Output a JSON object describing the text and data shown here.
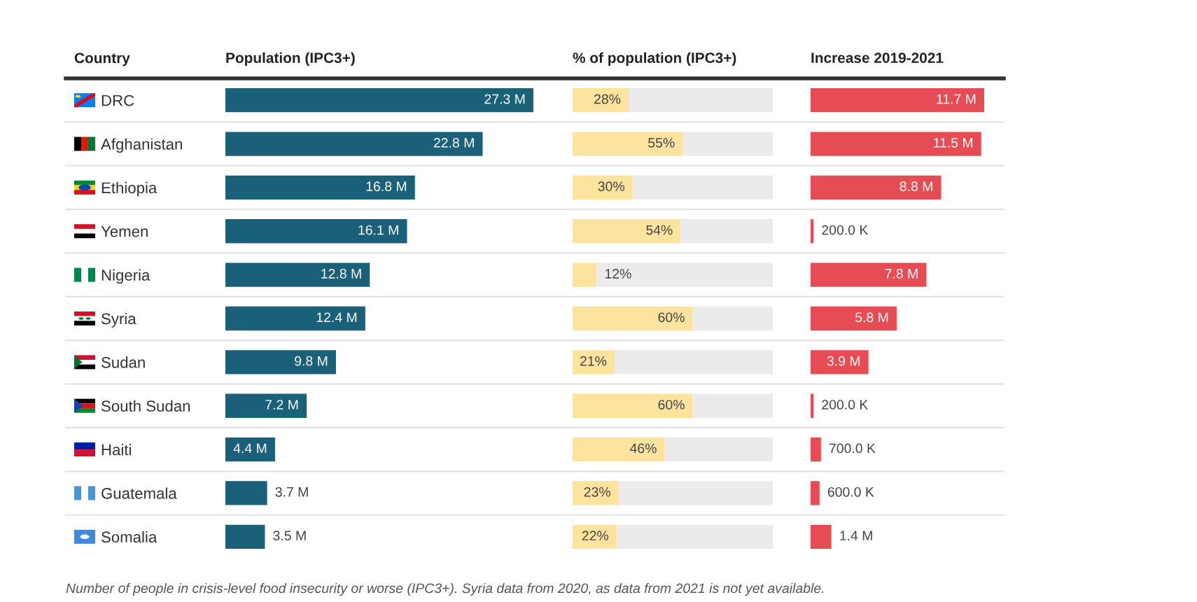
{
  "chart_data": [
    {
      "type": "bar",
      "orientation": "horizontal",
      "title": "Population (IPC3+)",
      "ylabel": "Country",
      "categories": [
        "DRC",
        "Afghanistan",
        "Ethiopia",
        "Yemen",
        "Nigeria",
        "Syria",
        "Sudan",
        "South Sudan",
        "Haiti",
        "Guatemala",
        "Somalia"
      ],
      "values": [
        27.3,
        22.8,
        16.8,
        16.1,
        12.8,
        12.4,
        9.8,
        7.2,
        4.4,
        3.7,
        3.5
      ],
      "value_labels": [
        "27.3 M",
        "22.8 M",
        "16.8 M",
        "16.1 M",
        "12.8 M",
        "12.4 M",
        "9.8 M",
        "7.2 M",
        "4.4 M",
        "3.7 M",
        "3.5 M"
      ],
      "color": "#1b6079",
      "tick_labels": "y",
      "annotations": [
        "Number of people in crisis-level food insecurity or worse (IPC3+). Syria data from 2020, as data from 2021 is not yet available."
      ]
    },
    {
      "type": "bar",
      "orientation": "horizontal",
      "stacked": true,
      "title": "% of population (IPC3+)",
      "series": [
        {
          "color": "#fde49e",
          "values": [
            28,
            55,
            30,
            54,
            12,
            60,
            21,
            60,
            46,
            23,
            22
          ],
          "value_labels": [
            "28%",
            "55%",
            "30%",
            "54%",
            "12%",
            "60%",
            "21%",
            "60%",
            "46%",
            "23%",
            "22%"
          ]
        },
        {
          "color": "#ebebeb",
          "values": [
            72,
            45,
            70,
            46,
            88,
            40,
            79,
            40,
            54,
            77,
            78
          ]
        }
      ],
      "xlim": [
        0,
        100
      ],
      "tick_labels": false
    },
    {
      "type": "bar",
      "orientation": "horizontal",
      "title": "Increase 2019-2021",
      "values": [
        11.7,
        11.5,
        8.8,
        0.2,
        7.8,
        5.8,
        3.9,
        0.2,
        0.7,
        0.6,
        1.4
      ],
      "value_labels": [
        "11.7 M",
        "11.5 M",
        "8.8 M",
        "200.0 K",
        "7.8 M",
        "5.8 M",
        "3.9 M",
        "200.0 K",
        "700.0 K",
        "600.0 K",
        "1.4 M"
      ],
      "color": "#e64c53",
      "tick_labels": false
    }
  ]
}
